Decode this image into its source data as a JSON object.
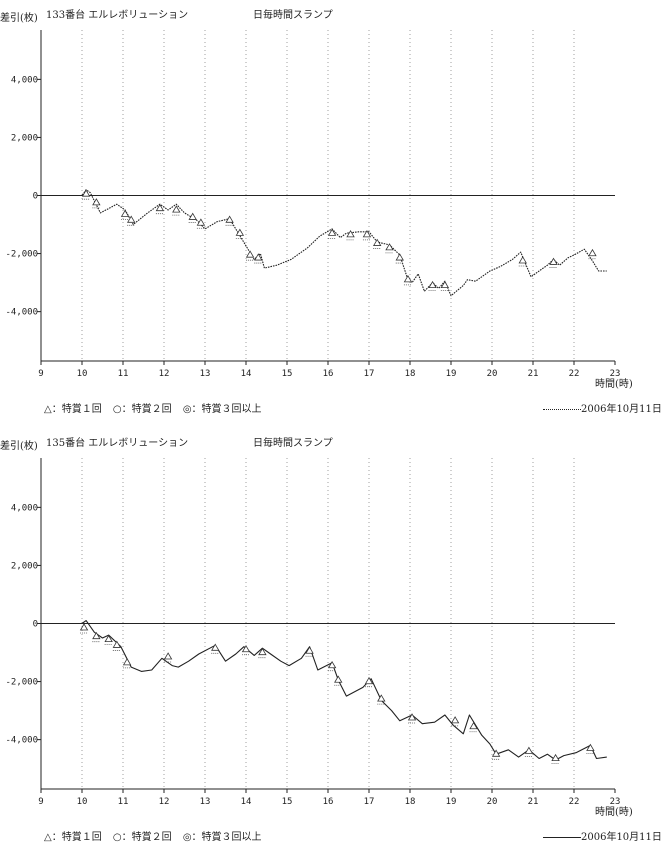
{
  "chart_data": [
    {
      "type": "line",
      "machine": "133番台 エルレボリューション",
      "title": "日毎時間スランプ",
      "ylabel": "差引(枚)",
      "xlabel": "時間(時)",
      "legend": [
        "△：特賞１回",
        "○：特賞２回",
        "◎：特賞３回以上"
      ],
      "date": "2006年10月11日",
      "line_style": "dotted",
      "xlim": [
        9,
        23
      ],
      "ylim": [
        5700,
        -5700
      ],
      "x_ticks": [
        "9",
        "10",
        "11",
        "12",
        "13",
        "14",
        "15",
        "16",
        "17",
        "18",
        "19",
        "20",
        "21",
        "22",
        "23"
      ],
      "y_ticks": [
        {
          "v": -4000,
          "label": "-4,000"
        },
        {
          "v": -2000,
          "label": "-2,000"
        },
        {
          "v": 0,
          "label": "0"
        },
        {
          "v": 2000,
          "label": "2,000"
        },
        {
          "v": 4000,
          "label": "4,000"
        }
      ],
      "grid_x": [
        10,
        11,
        12,
        13,
        14,
        15,
        16,
        17,
        18,
        19,
        20,
        21,
        22
      ],
      "series": [
        {
          "values": [
            [
              9,
              0
            ],
            [
              10,
              0
            ],
            [
              10.1,
              200
            ],
            [
              10.2,
              100
            ],
            [
              10.45,
              -600
            ],
            [
              10.85,
              -300
            ],
            [
              11.05,
              -500
            ],
            [
              11.25,
              -1000
            ],
            [
              11.6,
              -600
            ],
            [
              11.9,
              -300
            ],
            [
              12.1,
              -500
            ],
            [
              12.3,
              -300
            ],
            [
              12.5,
              -600
            ],
            [
              12.8,
              -850
            ],
            [
              13.0,
              -1150
            ],
            [
              13.3,
              -900
            ],
            [
              13.6,
              -800
            ],
            [
              13.9,
              -1500
            ],
            [
              14.2,
              -2200
            ],
            [
              14.35,
              -2000
            ],
            [
              14.45,
              -2500
            ],
            [
              14.75,
              -2400
            ],
            [
              15.1,
              -2200
            ],
            [
              15.5,
              -1800
            ],
            [
              15.8,
              -1400
            ],
            [
              16.1,
              -1150
            ],
            [
              16.3,
              -1450
            ],
            [
              16.45,
              -1300
            ],
            [
              16.75,
              -1250
            ],
            [
              17.0,
              -1250
            ],
            [
              17.2,
              -1600
            ],
            [
              17.5,
              -1700
            ],
            [
              17.75,
              -2050
            ],
            [
              17.95,
              -2900
            ],
            [
              18.05,
              -3000
            ],
            [
              18.2,
              -2700
            ],
            [
              18.35,
              -3300
            ],
            [
              18.55,
              -3000
            ],
            [
              18.7,
              -3200
            ],
            [
              18.85,
              -2950
            ],
            [
              19.0,
              -3450
            ],
            [
              19.3,
              -3100
            ],
            [
              19.4,
              -2900
            ],
            [
              19.6,
              -2950
            ],
            [
              19.95,
              -2600
            ],
            [
              20.2,
              -2450
            ],
            [
              20.5,
              -2200
            ],
            [
              20.7,
              -1950
            ],
            [
              20.95,
              -2800
            ],
            [
              21.2,
              -2550
            ],
            [
              21.35,
              -2400
            ],
            [
              21.5,
              -2200
            ],
            [
              21.65,
              -2400
            ],
            [
              21.85,
              -2150
            ],
            [
              22.0,
              -2050
            ],
            [
              22.25,
              -1850
            ],
            [
              22.45,
              -2250
            ],
            [
              22.6,
              -2600
            ],
            [
              22.8,
              -2600
            ]
          ]
        }
      ],
      "events": [
        {
          "x": 10.1,
          "y": 200,
          "kind": "△"
        },
        {
          "x": 10.35,
          "y": -100,
          "kind": "△"
        },
        {
          "x": 11.05,
          "y": -500,
          "kind": "△"
        },
        {
          "x": 11.2,
          "y": -700,
          "kind": "△"
        },
        {
          "x": 11.9,
          "y": -300,
          "kind": "△"
        },
        {
          "x": 12.3,
          "y": -350,
          "kind": "△"
        },
        {
          "x": 12.7,
          "y": -600,
          "kind": "△"
        },
        {
          "x": 12.9,
          "y": -800,
          "kind": "△"
        },
        {
          "x": 13.6,
          "y": -700,
          "kind": "△"
        },
        {
          "x": 13.85,
          "y": -1150,
          "kind": "△"
        },
        {
          "x": 14.1,
          "y": -1900,
          "kind": "△"
        },
        {
          "x": 14.3,
          "y": -2000,
          "kind": "△"
        },
        {
          "x": 16.1,
          "y": -1150,
          "kind": "△"
        },
        {
          "x": 16.55,
          "y": -1200,
          "kind": "△"
        },
        {
          "x": 16.95,
          "y": -1200,
          "kind": "△"
        },
        {
          "x": 17.2,
          "y": -1500,
          "kind": "△"
        },
        {
          "x": 17.5,
          "y": -1650,
          "kind": "△"
        },
        {
          "x": 17.75,
          "y": -2000,
          "kind": "△"
        },
        {
          "x": 17.95,
          "y": -2750,
          "kind": "△"
        },
        {
          "x": 18.55,
          "y": -2950,
          "kind": "△"
        },
        {
          "x": 18.85,
          "y": -2950,
          "kind": "△"
        },
        {
          "x": 20.75,
          "y": -2100,
          "kind": "△"
        },
        {
          "x": 21.5,
          "y": -2150,
          "kind": "△"
        },
        {
          "x": 22.45,
          "y": -1850,
          "kind": "△"
        }
      ]
    },
    {
      "type": "line",
      "machine": "135番台 エルレボリューション",
      "title": "日毎時間スランプ",
      "ylabel": "差引(枚)",
      "xlabel": "時間(時)",
      "legend": [
        "△：特賞１回",
        "○：特賞２回",
        "◎：特賞３回以上"
      ],
      "date": "2006年10月11日",
      "line_style": "solid",
      "xlim": [
        9,
        23
      ],
      "ylim": [
        5700,
        -5700
      ],
      "x_ticks": [
        "9",
        "10",
        "11",
        "12",
        "13",
        "14",
        "15",
        "16",
        "17",
        "18",
        "19",
        "20",
        "21",
        "22",
        "23"
      ],
      "y_ticks": [
        {
          "v": -4000,
          "label": "-4,000"
        },
        {
          "v": -2000,
          "label": "-2,000"
        },
        {
          "v": 0,
          "label": "0"
        },
        {
          "v": 2000,
          "label": "2,000"
        },
        {
          "v": 4000,
          "label": "4,000"
        }
      ],
      "grid_x": [
        10,
        11,
        12,
        13,
        14,
        15,
        16,
        17,
        18,
        19,
        20,
        21,
        22
      ],
      "series": [
        {
          "values": [
            [
              9,
              0
            ],
            [
              10,
              0
            ],
            [
              10.1,
              100
            ],
            [
              10.3,
              -300
            ],
            [
              10.5,
              -500
            ],
            [
              10.65,
              -400
            ],
            [
              10.95,
              -800
            ],
            [
              11.2,
              -1500
            ],
            [
              11.45,
              -1650
            ],
            [
              11.7,
              -1600
            ],
            [
              11.95,
              -1200
            ],
            [
              12.2,
              -1450
            ],
            [
              12.35,
              -1500
            ],
            [
              12.6,
              -1300
            ],
            [
              12.85,
              -1050
            ],
            [
              13.25,
              -750
            ],
            [
              13.5,
              -1300
            ],
            [
              13.75,
              -1050
            ],
            [
              13.95,
              -800
            ],
            [
              14.2,
              -1100
            ],
            [
              14.4,
              -850
            ],
            [
              14.6,
              -1050
            ],
            [
              14.85,
              -1300
            ],
            [
              15.05,
              -1450
            ],
            [
              15.35,
              -1200
            ],
            [
              15.55,
              -800
            ],
            [
              15.75,
              -1600
            ],
            [
              16.1,
              -1350
            ],
            [
              16.25,
              -1950
            ],
            [
              16.45,
              -2500
            ],
            [
              16.85,
              -2200
            ],
            [
              17.05,
              -1900
            ],
            [
              17.3,
              -2650
            ],
            [
              17.55,
              -3000
            ],
            [
              17.75,
              -3350
            ],
            [
              18.05,
              -3150
            ],
            [
              18.3,
              -3450
            ],
            [
              18.6,
              -3400
            ],
            [
              18.85,
              -3150
            ],
            [
              19.05,
              -3500
            ],
            [
              19.3,
              -3800
            ],
            [
              19.45,
              -3150
            ],
            [
              19.75,
              -3850
            ],
            [
              19.95,
              -4150
            ],
            [
              20.1,
              -4500
            ],
            [
              20.4,
              -4350
            ],
            [
              20.65,
              -4600
            ],
            [
              20.9,
              -4350
            ],
            [
              21.15,
              -4650
            ],
            [
              21.35,
              -4500
            ],
            [
              21.55,
              -4700
            ],
            [
              21.75,
              -4550
            ],
            [
              22.05,
              -4450
            ],
            [
              22.4,
              -4200
            ],
            [
              22.55,
              -4650
            ],
            [
              22.8,
              -4600
            ]
          ]
        }
      ],
      "events": [
        {
          "x": 10.05,
          "y": 0,
          "kind": "△"
        },
        {
          "x": 10.35,
          "y": -300,
          "kind": "△"
        },
        {
          "x": 10.65,
          "y": -400,
          "kind": "△"
        },
        {
          "x": 10.85,
          "y": -600,
          "kind": "△"
        },
        {
          "x": 11.1,
          "y": -1200,
          "kind": "△"
        },
        {
          "x": 12.1,
          "y": -1000,
          "kind": "△"
        },
        {
          "x": 13.25,
          "y": -700,
          "kind": "△"
        },
        {
          "x": 14.0,
          "y": -750,
          "kind": "△"
        },
        {
          "x": 14.4,
          "y": -850,
          "kind": "△"
        },
        {
          "x": 15.55,
          "y": -800,
          "kind": "△"
        },
        {
          "x": 16.1,
          "y": -1300,
          "kind": "△"
        },
        {
          "x": 16.25,
          "y": -1800,
          "kind": "△"
        },
        {
          "x": 17.0,
          "y": -1850,
          "kind": "△"
        },
        {
          "x": 17.3,
          "y": -2450,
          "kind": "△"
        },
        {
          "x": 18.05,
          "y": -3100,
          "kind": "△"
        },
        {
          "x": 19.1,
          "y": -3200,
          "kind": "△"
        },
        {
          "x": 19.55,
          "y": -3400,
          "kind": "△"
        },
        {
          "x": 20.1,
          "y": -4350,
          "kind": "△"
        },
        {
          "x": 20.9,
          "y": -4250,
          "kind": "△"
        },
        {
          "x": 21.55,
          "y": -4500,
          "kind": "△"
        },
        {
          "x": 22.4,
          "y": -4150,
          "kind": "△"
        }
      ]
    }
  ]
}
